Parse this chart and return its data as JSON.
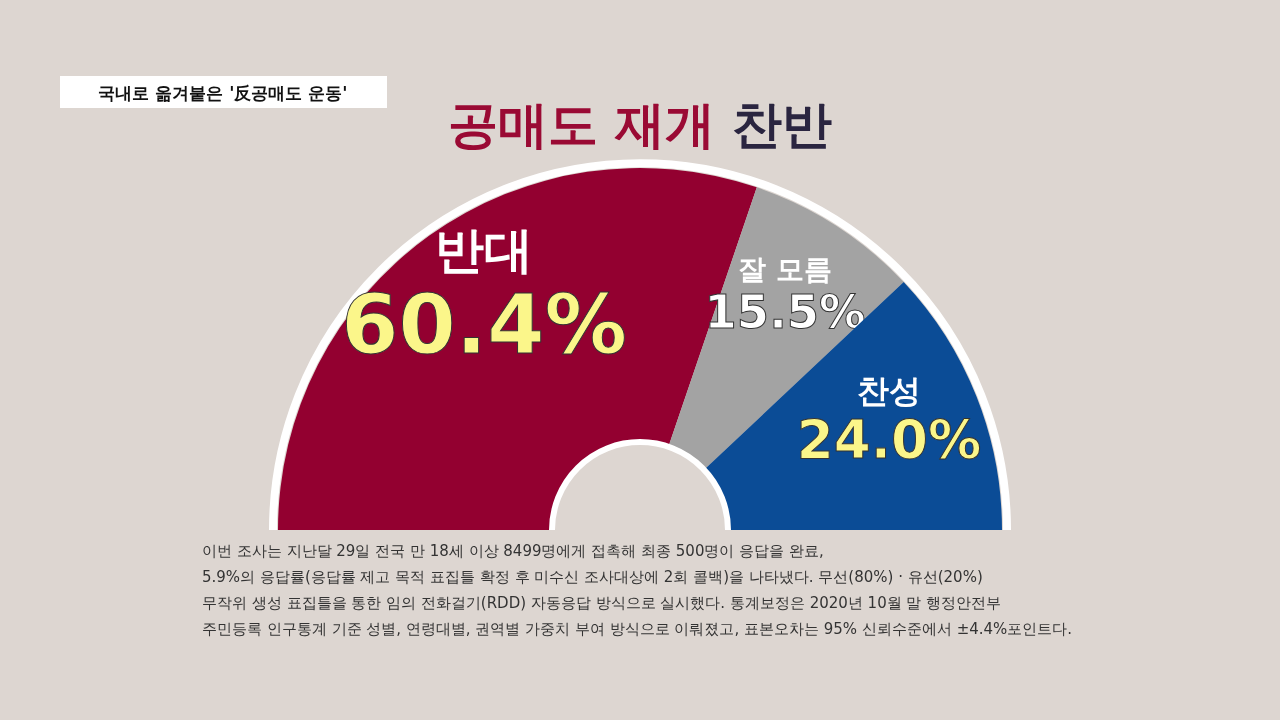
{
  "chart_data": {
    "type": "donut",
    "title": "**공매도 재개** 찬반",
    "subtitle": "국내로 옮겨붙은 '反공매도 운동'",
    "categories": [
      "반대",
      "잘 모름",
      "찬성"
    ],
    "values": [
      60.4,
      15.5,
      24.0
    ],
    "colors": [
      "#930030",
      "#a3a3a3",
      "#0b4c96"
    ],
    "value_labels": [
      "60.4%",
      "15.5%",
      "24.0%"
    ],
    "annotations": [
      "이번 조사는 지난달 29일 전국 만 18세 이상 8499명에게 접촉해 최종 500명이 응답을 완료,",
      "5.9%의 응답률(응답률 제고 목적 표집틀 확정 후 미수신 조사대상에 2회 콜백)을 나타냈다. 무선(80%) · 유선(20%)",
      "무작위 생성 표집틀을 통한 임의 전화걸기(RDD) 자동응답 방식으로 실시했다. 통계보정은 2020년 10월 말 행정안전부",
      "주민등록 인구통계 기준 성별, 연령대별, 권역별 가중치 부여 방식으로 이뤄졌고, 표본오차는 95% 신뢰수준에서 ±4.4%포인트다."
    ]
  }
}
